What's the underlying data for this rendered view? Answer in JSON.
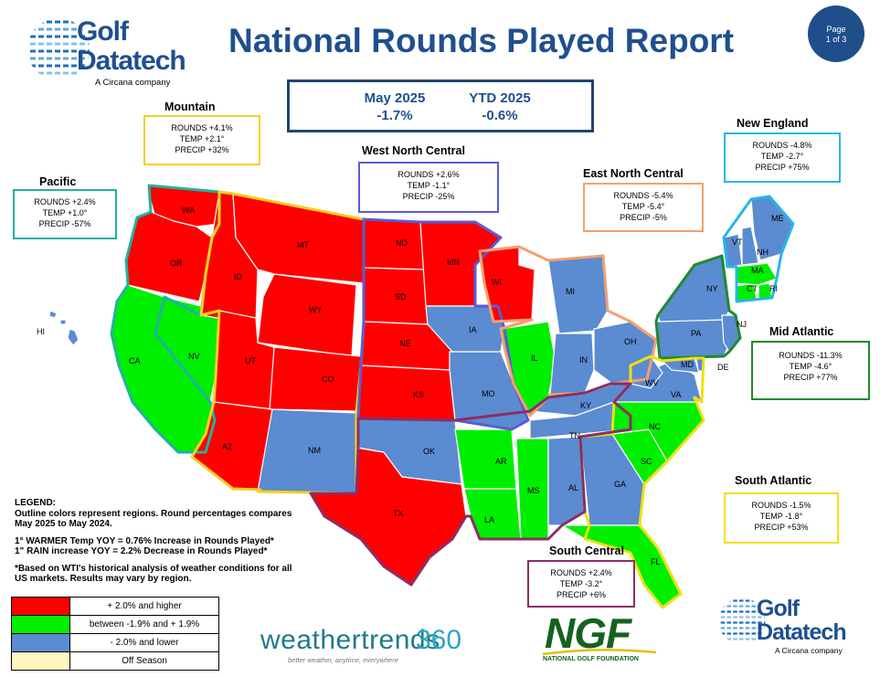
{
  "title": "National Rounds Played Report",
  "page": {
    "line1": "Page",
    "line2": "1 of 3"
  },
  "logo": {
    "word1": "Golf",
    "word2": "Datatech",
    "tagline": "A Circana company"
  },
  "summary": {
    "month_label": "May 2025",
    "month_value": "-1.7%",
    "ytd_label": "YTD  2025",
    "ytd_value": "-0.6%"
  },
  "regions": {
    "pacific": {
      "name": "Pacific",
      "rounds": "ROUNDS +2.4%",
      "temp": "TEMP  +1.0°",
      "precip": "PRECIP  -57%",
      "color": "#20b2a0"
    },
    "mountain": {
      "name": "Mountain",
      "rounds": "ROUNDS +4.1%",
      "temp": "TEMP +2.1°",
      "precip": "PRECIP +32%",
      "color": "#f2d022"
    },
    "west_north_central": {
      "name": "West North Central",
      "rounds": "ROUNDS +2.6%",
      "temp": "TEMP  -1.1°",
      "precip": "PRECIP  -25%",
      "color": "#5b5bd6"
    },
    "east_north_central": {
      "name": "East North Central",
      "rounds": "ROUNDS -5.4%",
      "temp": "TEMP     -5.4°",
      "precip": "PRECIP   -5%",
      "color": "#f4a070"
    },
    "new_england": {
      "name": "New England",
      "rounds": "ROUNDS -4.8%",
      "temp": "TEMP    -2.7°",
      "precip": "PRECIP +75%",
      "color": "#29b6e8"
    },
    "mid_atlantic": {
      "name": "Mid Atlantic",
      "rounds": "ROUNDS -11.3%",
      "temp": "TEMP   -4.6°",
      "precip": "PRECIP +77%",
      "color": "#1e8a2e"
    },
    "south_atlantic": {
      "name": "South Atlantic",
      "rounds": "ROUNDS -1.5%",
      "temp": "TEMP   -1.8°",
      "precip": "PRECIP +53%",
      "color": "#f0e010"
    },
    "south_central": {
      "name": "South Central",
      "rounds": "ROUNDS +2.4%",
      "temp": "TEMP   -3.2°",
      "precip": "PRECIP +6%",
      "color": "#8a2e66"
    }
  },
  "map": {
    "colors": {
      "plus": "#ff0000",
      "flat": "#00ee00",
      "minus": "#5b8bd0",
      "off": "#fff6c0"
    },
    "states": [
      {
        "abbr": "WA",
        "cat": "plus"
      },
      {
        "abbr": "OR",
        "cat": "plus"
      },
      {
        "abbr": "CA",
        "cat": "flat"
      },
      {
        "abbr": "NV",
        "cat": "flat"
      },
      {
        "abbr": "ID",
        "cat": "plus"
      },
      {
        "abbr": "MT",
        "cat": "plus"
      },
      {
        "abbr": "WY",
        "cat": "plus"
      },
      {
        "abbr": "UT",
        "cat": "plus"
      },
      {
        "abbr": "CO",
        "cat": "plus"
      },
      {
        "abbr": "AZ",
        "cat": "plus"
      },
      {
        "abbr": "NM",
        "cat": "minus"
      },
      {
        "abbr": "ND",
        "cat": "plus"
      },
      {
        "abbr": "SD",
        "cat": "plus"
      },
      {
        "abbr": "NE",
        "cat": "plus"
      },
      {
        "abbr": "KS",
        "cat": "plus"
      },
      {
        "abbr": "MN",
        "cat": "plus"
      },
      {
        "abbr": "IA",
        "cat": "minus"
      },
      {
        "abbr": "MO",
        "cat": "minus"
      },
      {
        "abbr": "WI",
        "cat": "plus"
      },
      {
        "abbr": "IL",
        "cat": "flat"
      },
      {
        "abbr": "MI",
        "cat": "minus"
      },
      {
        "abbr": "IN",
        "cat": "minus"
      },
      {
        "abbr": "OH",
        "cat": "minus"
      },
      {
        "abbr": "KY",
        "cat": "minus"
      },
      {
        "abbr": "TN",
        "cat": "minus"
      },
      {
        "abbr": "OK",
        "cat": "minus"
      },
      {
        "abbr": "TX",
        "cat": "plus"
      },
      {
        "abbr": "AR",
        "cat": "flat"
      },
      {
        "abbr": "LA",
        "cat": "flat"
      },
      {
        "abbr": "MS",
        "cat": "flat"
      },
      {
        "abbr": "AL",
        "cat": "minus"
      },
      {
        "abbr": "GA",
        "cat": "minus"
      },
      {
        "abbr": "FL",
        "cat": "flat"
      },
      {
        "abbr": "SC",
        "cat": "flat"
      },
      {
        "abbr": "NC",
        "cat": "flat"
      },
      {
        "abbr": "VA",
        "cat": "minus"
      },
      {
        "abbr": "WV",
        "cat": "minus"
      },
      {
        "abbr": "MD",
        "cat": "minus"
      },
      {
        "abbr": "DE",
        "cat": "minus"
      },
      {
        "abbr": "PA",
        "cat": "minus"
      },
      {
        "abbr": "NY",
        "cat": "minus"
      },
      {
        "abbr": "NJ",
        "cat": "minus"
      },
      {
        "abbr": "CT",
        "cat": "flat"
      },
      {
        "abbr": "RI",
        "cat": "flat"
      },
      {
        "abbr": "MA",
        "cat": "flat"
      },
      {
        "abbr": "VT",
        "cat": "minus"
      },
      {
        "abbr": "NH",
        "cat": "minus"
      },
      {
        "abbr": "ME",
        "cat": "minus"
      },
      {
        "abbr": "HI",
        "cat": "minus"
      }
    ]
  },
  "legend": {
    "heading": "LEGEND:",
    "line1": "Outline colors represent regions. Round percentages compares",
    "line2": "May 2025 to May 2024.",
    "line3": "1° WARMER Temp YOY = 0.76% Increase in Rounds Played*",
    "line4": "1\" RAIN increase YOY = 2.2% Decrease in Rounds Played*",
    "line5": "*Based on WTI's historical analysis of weather conditions for all",
    "line6": "US markets. Results may vary by region.",
    "rows": [
      {
        "label": "+ 2.0% and higher",
        "color": "#ff0000"
      },
      {
        "label": "between -1.9% and + 1.9%",
        "color": "#00ee00"
      },
      {
        "label": "- 2.0% and lower",
        "color": "#5b8bd0"
      },
      {
        "label": "Off Season",
        "color": "#fff6c0"
      }
    ]
  },
  "partners": {
    "weathertrends": {
      "name": "weathertrends",
      "num": "360",
      "tagline": "better weather, anytime, everywhere"
    },
    "ngf": {
      "name": "NGF",
      "tagline": "NATIONAL GOLF FOUNDATION"
    }
  }
}
